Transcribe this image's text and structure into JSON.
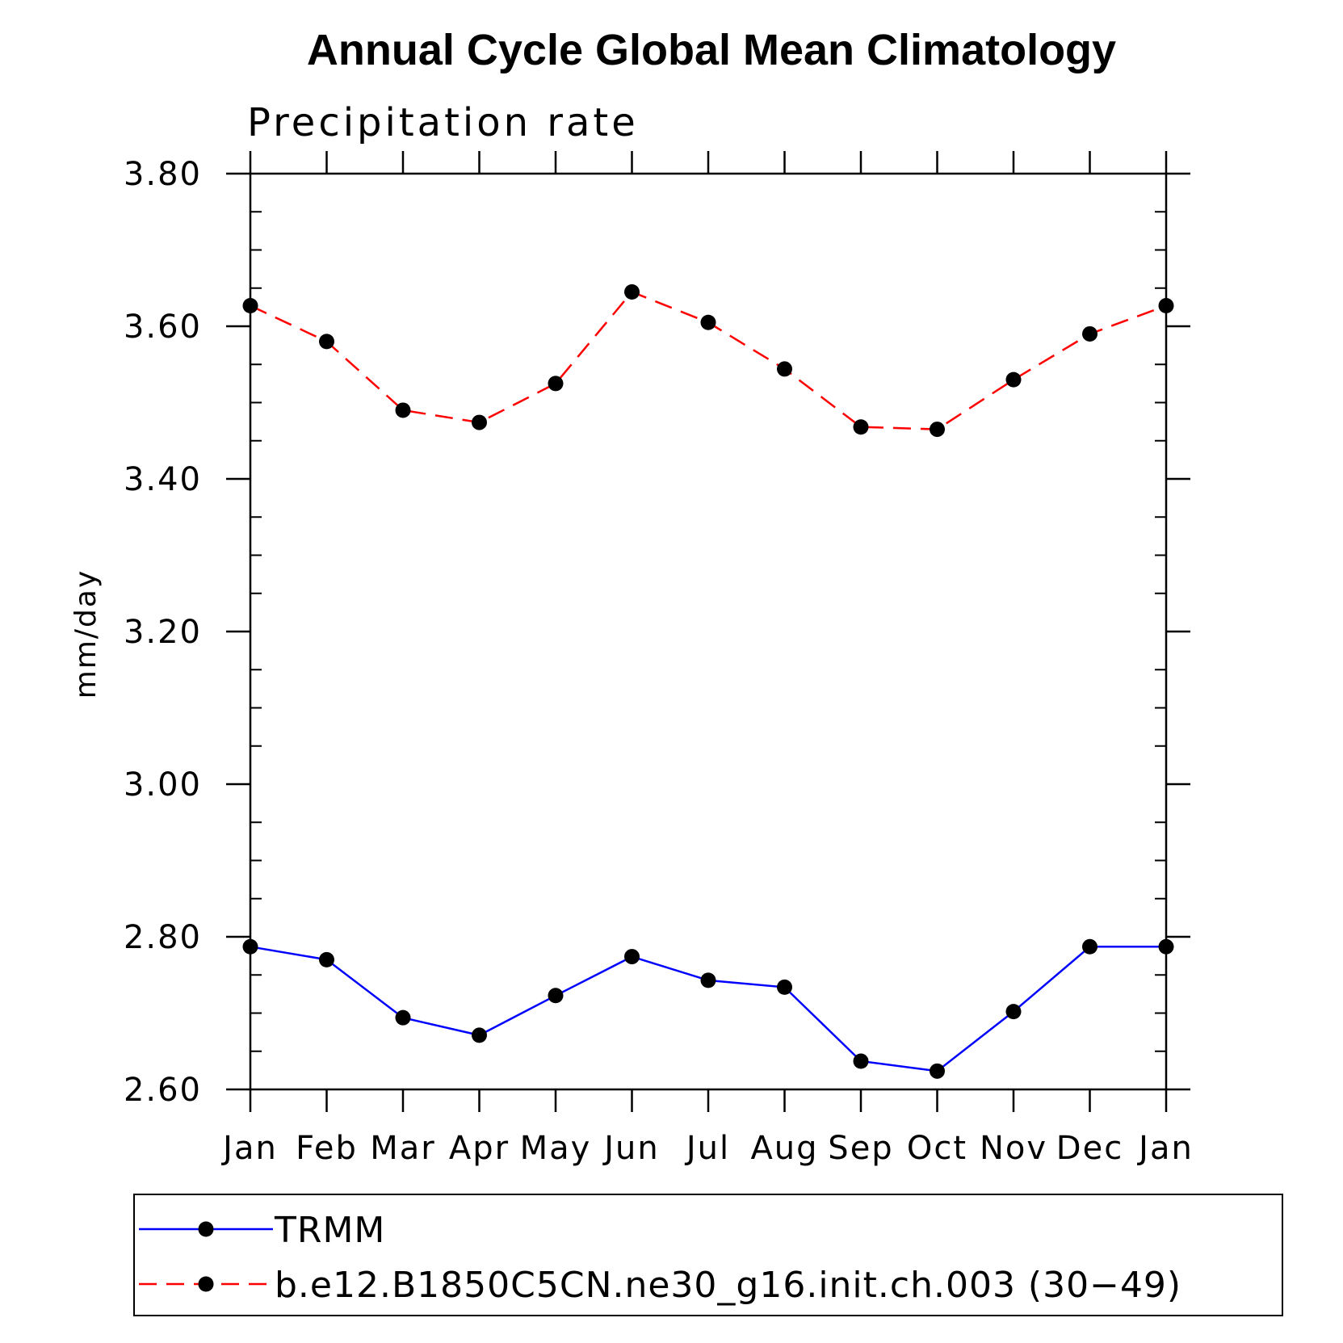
{
  "chart_data": {
    "type": "line",
    "title": "Annual Cycle Global Mean Climatology",
    "subtitle": "Precipitation rate",
    "xlabel": "",
    "ylabel": "mm/day",
    "categories": [
      "Jan",
      "Feb",
      "Mar",
      "Apr",
      "May",
      "Jun",
      "Jul",
      "Aug",
      "Sep",
      "Oct",
      "Nov",
      "Dec",
      "Jan"
    ],
    "ylim": [
      2.6,
      3.8
    ],
    "yticks": [
      "2.60",
      "2.80",
      "3.00",
      "3.20",
      "3.40",
      "3.60",
      "3.80"
    ],
    "grid": false,
    "legend_position": "bottom",
    "series": [
      {
        "name": "TRMM",
        "color": "#0000ff",
        "line_style": "solid",
        "marker": "filled-circle",
        "values": [
          2.787,
          2.77,
          2.694,
          2.671,
          2.723,
          2.774,
          2.743,
          2.734,
          2.637,
          2.624,
          2.702,
          2.787,
          2.787
        ]
      },
      {
        "name": "b.e12.B1850C5CN.ne30_g16.init.ch.003 (30−49)",
        "color": "#ff0000",
        "line_style": "dashed",
        "marker": "filled-circle",
        "values": [
          3.627,
          3.58,
          3.49,
          3.474,
          3.525,
          3.645,
          3.605,
          3.544,
          3.468,
          3.465,
          3.53,
          3.59,
          3.627
        ]
      }
    ]
  }
}
